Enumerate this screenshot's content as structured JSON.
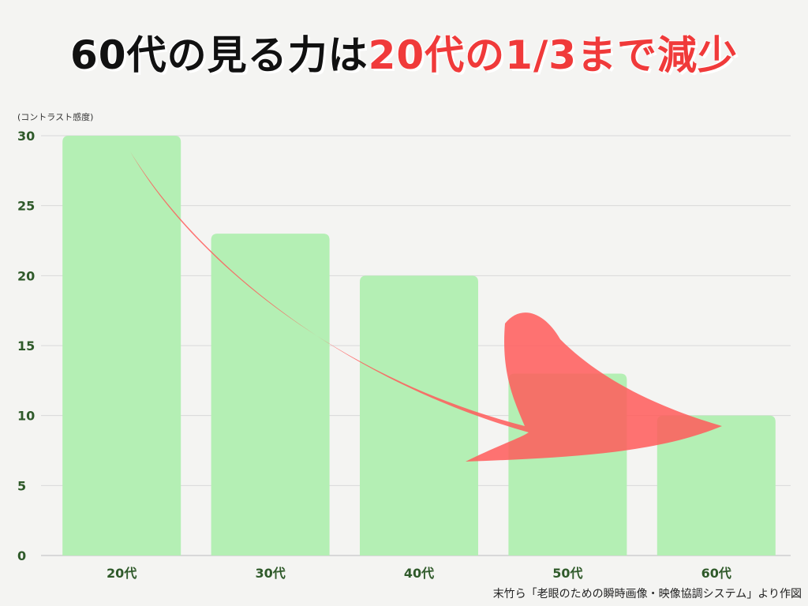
{
  "title": {
    "part1": "60代の見る力は",
    "part2": "20代の1/3まで減少"
  },
  "unit_label": "(コントラスト感度)",
  "source": "末竹ら「老眼のための瞬時画像・映像協調システム」より作図",
  "colors": {
    "bar": "#b4efb4",
    "arrow": "#ff5a5a",
    "title_highlight": "#f03a3a",
    "tick": "#2f5a2a"
  },
  "chart_data": {
    "type": "bar",
    "categories": [
      "20代",
      "30代",
      "40代",
      "50代",
      "60代"
    ],
    "values": [
      30,
      23,
      20,
      13,
      10
    ],
    "title": "60代の見る力は20代の1/3まで減少",
    "xlabel": "",
    "ylabel": "(コントラスト感度)",
    "ylim": [
      0,
      30
    ],
    "yticks": [
      0,
      5,
      10,
      15,
      20,
      25,
      30
    ],
    "grid": true,
    "legend": "none",
    "annotation": "decreasing-trend-arrow"
  }
}
